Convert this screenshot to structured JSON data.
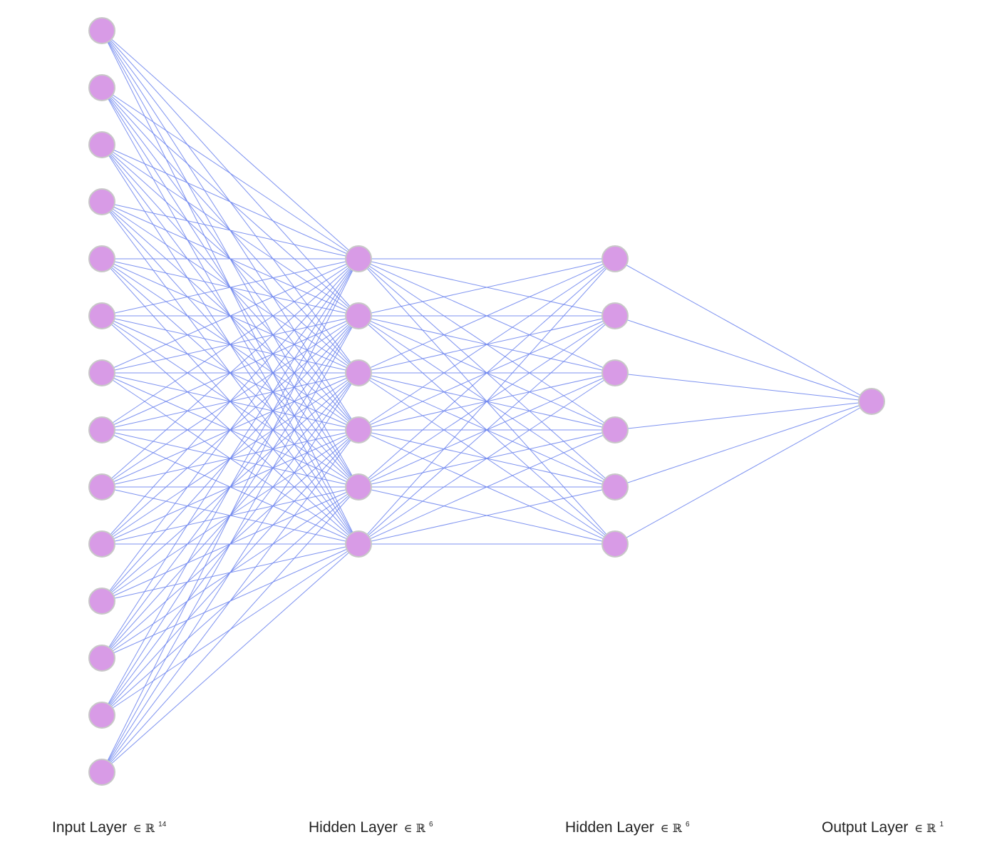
{
  "colors": {
    "node_fill": "#d89be6",
    "node_stroke": "#c8c8c8",
    "edge": "#6f86ee",
    "background": "#ffffff"
  },
  "layers": [
    {
      "name": "Input Layer",
      "symbol": "∈ ℝ",
      "size_label": "14",
      "nodes": 14
    },
    {
      "name": "Hidden Layer",
      "symbol": "∈ ℝ",
      "size_label": "6",
      "nodes": 6
    },
    {
      "name": "Hidden Layer",
      "symbol": "∈ ℝ",
      "size_label": "6",
      "nodes": 6
    },
    {
      "name": "Output Layer",
      "symbol": "∈ ℝ",
      "size_label": "1",
      "nodes": 1
    }
  ]
}
